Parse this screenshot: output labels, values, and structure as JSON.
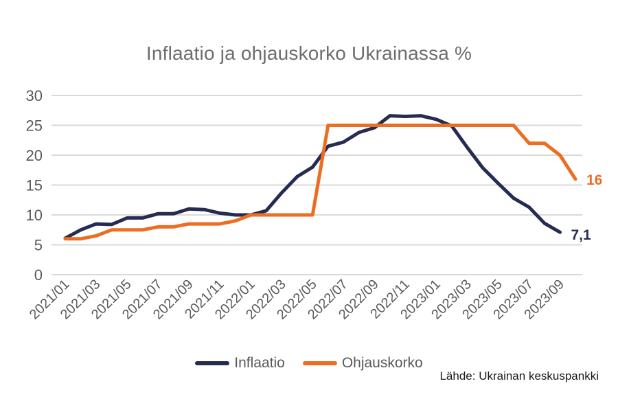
{
  "title": "Inflaatio ja ohjauskorko Ukrainassa %",
  "source": "Lähde: Ukrainan keskuspankki",
  "colors": {
    "inflation": "#262b52",
    "policy_rate": "#ec6e22",
    "grid": "#d9d9d9",
    "tick_text": "#595959",
    "title_text": "#6d6d6d",
    "source_text": "#1a1a1a",
    "background": "#ffffff"
  },
  "legend": {
    "items": [
      {
        "label": "Inflaatio",
        "color": "#262b52"
      },
      {
        "label": "Ohjauskorko",
        "color": "#ec6e22"
      }
    ],
    "position": "bottom"
  },
  "chart_data": {
    "type": "line",
    "title": "Inflaatio ja ohjauskorko Ukrainassa %",
    "xlabel": "",
    "ylabel": "",
    "ylim": [
      0,
      30
    ],
    "yticks": [
      0,
      5,
      10,
      15,
      20,
      25,
      30
    ],
    "grid": true,
    "legend_position": "bottom",
    "x": [
      "2021/01",
      "2021/02",
      "2021/03",
      "2021/04",
      "2021/05",
      "2021/06",
      "2021/07",
      "2021/08",
      "2021/09",
      "2021/10",
      "2021/11",
      "2021/12",
      "2022/01",
      "2022/02",
      "2022/03",
      "2022/04",
      "2022/05",
      "2022/06",
      "2022/07",
      "2022/08",
      "2022/09",
      "2022/10",
      "2022/11",
      "2022/12",
      "2023/01",
      "2023/02",
      "2023/03",
      "2023/04",
      "2023/05",
      "2023/06",
      "2023/07",
      "2023/08",
      "2023/09",
      "2023/10"
    ],
    "x_tick_every": 2,
    "x_tick_labels": [
      "2021/01",
      "2021/03",
      "2021/05",
      "2021/07",
      "2021/09",
      "2021/11",
      "2022/01",
      "2022/03",
      "2022/05",
      "2022/07",
      "2022/09",
      "2022/11",
      "2023/01",
      "2023/03",
      "2023/05",
      "2023/07",
      "2023/09"
    ],
    "series": [
      {
        "name": "Inflaatio",
        "color": "#262b52",
        "end_label": "7,1",
        "values": [
          6.1,
          7.5,
          8.5,
          8.4,
          9.5,
          9.5,
          10.2,
          10.2,
          11.0,
          10.9,
          10.3,
          10.0,
          10.0,
          10.7,
          13.7,
          16.4,
          18.0,
          21.5,
          22.2,
          23.8,
          24.6,
          26.6,
          26.5,
          26.6,
          26.0,
          24.9,
          21.3,
          17.9,
          15.3,
          12.8,
          11.3,
          8.6,
          7.1
        ]
      },
      {
        "name": "Ohjauskorko",
        "color": "#ec6e22",
        "end_label": "16",
        "values": [
          6,
          6,
          6.5,
          7.5,
          7.5,
          7.5,
          8,
          8,
          8.5,
          8.5,
          8.5,
          9,
          10,
          10,
          10,
          10,
          10,
          25,
          25,
          25,
          25,
          25,
          25,
          25,
          25,
          25,
          25,
          25,
          25,
          25,
          22,
          22,
          20,
          16
        ]
      }
    ]
  }
}
